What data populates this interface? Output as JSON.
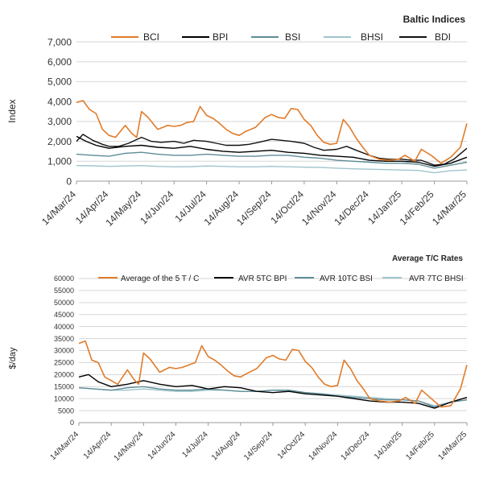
{
  "chart_data": [
    {
      "type": "line",
      "title": "Baltic Indices",
      "ylabel": "Index",
      "ylim": [
        0,
        7000
      ],
      "yticks": [
        0,
        1000,
        2000,
        3000,
        4000,
        5000,
        6000,
        7000
      ],
      "ytick_labels": [
        "0",
        "1,000",
        "2,000",
        "3,000",
        "4,000",
        "5,000",
        "6,000",
        "7,000"
      ],
      "xticks": [
        "14/Mar/24",
        "14/Apr/24",
        "14/May/24",
        "14/Jun/24",
        "14/Jul/24",
        "14/Aug/24",
        "14/Sep/24",
        "14/Oct/24",
        "14/Nov/24",
        "14/Dec/24",
        "14/Jan/25",
        "14/Feb/25",
        "14/Mar/25"
      ],
      "legend": "top",
      "grid": "horizontal",
      "series": [
        {
          "name": "BCI",
          "color": "#e07b2a",
          "t": [
            0,
            0.2,
            0.4,
            0.6,
            0.8,
            1,
            1.2,
            1.5,
            1.7,
            1.85,
            2,
            2.2,
            2.5,
            2.8,
            3,
            3.2,
            3.4,
            3.6,
            3.8,
            4,
            4.2,
            4.4,
            4.6,
            4.8,
            5,
            5.2,
            5.5,
            5.8,
            6,
            6.2,
            6.4,
            6.6,
            6.8,
            7,
            7.2,
            7.4,
            7.6,
            7.8,
            8,
            8.2,
            8.4,
            8.6,
            8.8,
            9,
            9.3,
            9.6,
            9.9,
            10.1,
            10.4,
            10.6,
            10.9,
            11.2,
            11.5,
            11.8,
            12
          ],
          "values": [
            3950,
            4050,
            3600,
            3400,
            2600,
            2300,
            2200,
            2800,
            2400,
            2200,
            3500,
            3200,
            2600,
            2800,
            2750,
            2800,
            2950,
            3000,
            3750,
            3300,
            3150,
            2900,
            2600,
            2400,
            2300,
            2500,
            2700,
            3200,
            3350,
            3200,
            3150,
            3650,
            3600,
            3100,
            2800,
            2300,
            1950,
            1850,
            1900,
            3100,
            2700,
            2150,
            1700,
            1300,
            1100,
            1050,
            1100,
            1300,
            1000,
            1600,
            1300,
            900,
            1200,
            1700,
            2900
          ]
        },
        {
          "name": "BPI",
          "color": "#000000",
          "t": [
            0,
            0.3,
            0.6,
            1,
            1.5,
            2,
            2.5,
            3,
            3.5,
            4,
            4.5,
            5,
            5.5,
            6,
            6.5,
            7,
            7.5,
            8,
            8.5,
            9,
            9.5,
            10,
            10.5,
            11,
            11.5,
            12
          ],
          "values": [
            2250,
            2000,
            1800,
            1650,
            1750,
            1800,
            1700,
            1650,
            1750,
            1600,
            1500,
            1450,
            1500,
            1550,
            1450,
            1400,
            1300,
            1250,
            1200,
            1050,
            1000,
            1000,
            950,
            750,
            900,
            1200
          ]
        },
        {
          "name": "BSI",
          "color": "#5e8c96",
          "t": [
            0,
            0.5,
            1,
            1.5,
            2,
            2.5,
            3,
            3.5,
            4,
            4.5,
            5,
            5.5,
            6,
            6.5,
            7,
            7.5,
            8,
            8.5,
            9,
            9.5,
            10,
            10.5,
            11,
            11.5,
            12
          ],
          "values": [
            1350,
            1300,
            1250,
            1400,
            1450,
            1350,
            1300,
            1300,
            1350,
            1300,
            1250,
            1250,
            1300,
            1300,
            1200,
            1150,
            1050,
            1000,
            950,
            900,
            900,
            850,
            650,
            800,
            950
          ]
        },
        {
          "name": "BHSI",
          "color": "#9fc4cc",
          "t": [
            0,
            0.5,
            1,
            1.5,
            2,
            2.5,
            3,
            3.5,
            4,
            4.5,
            5,
            5.5,
            6,
            6.5,
            7,
            7.5,
            8,
            8.5,
            9,
            9.5,
            10,
            10.5,
            11,
            11.5,
            12
          ],
          "values": [
            780,
            770,
            740,
            760,
            780,
            740,
            720,
            730,
            760,
            740,
            720,
            720,
            740,
            720,
            700,
            690,
            650,
            620,
            600,
            580,
            560,
            540,
            420,
            520,
            560
          ]
        },
        {
          "name": "BDI",
          "color": "#111111",
          "t": [
            0,
            0.2,
            0.5,
            0.8,
            1,
            1.3,
            1.6,
            2,
            2.3,
            2.6,
            3,
            3.3,
            3.6,
            4,
            4.3,
            4.6,
            5,
            5.3,
            5.6,
            6,
            6.3,
            6.6,
            7,
            7.3,
            7.6,
            8,
            8.3,
            8.6,
            9,
            9.3,
            9.6,
            10,
            10.3,
            10.6,
            11,
            11.3,
            11.6,
            12
          ],
          "values": [
            2000,
            2350,
            2050,
            1850,
            1750,
            1750,
            1900,
            2200,
            2000,
            1950,
            2000,
            1900,
            2050,
            2000,
            1900,
            1800,
            1800,
            1850,
            1950,
            2100,
            2050,
            2000,
            1900,
            1700,
            1550,
            1600,
            1750,
            1550,
            1300,
            1150,
            1100,
            1100,
            1050,
            1050,
            800,
            850,
            1100,
            1650
          ]
        }
      ]
    },
    {
      "type": "line",
      "title": "Average T/C Rates",
      "ylabel": "$/day",
      "ylim": [
        0,
        60000
      ],
      "yticks": [
        0,
        5000,
        10000,
        15000,
        20000,
        25000,
        30000,
        35000,
        40000,
        45000,
        50000,
        55000,
        60000
      ],
      "ytick_labels": [
        "0",
        "5000",
        "10000",
        "15000",
        "20000",
        "25000",
        "30000",
        "35000",
        "40000",
        "45000",
        "50000",
        "55000",
        "60000"
      ],
      "xticks": [
        "14/Mar/24",
        "14/Apr/24",
        "14/May/24",
        "14/Jun/24",
        "14/Jul/24",
        "14/Aug/24",
        "14/Sep/24",
        "14/Oct/24",
        "14/Nov/24",
        "14/Dec/24",
        "14/Jan/25",
        "14/Feb/25",
        "14/Mar/25"
      ],
      "legend": "top",
      "grid": "horizontal",
      "series": [
        {
          "name": "Average of the 5 T / C",
          "color": "#e07b2a",
          "t": [
            0,
            0.2,
            0.4,
            0.6,
            0.8,
            1,
            1.2,
            1.5,
            1.7,
            1.85,
            2,
            2.2,
            2.5,
            2.8,
            3,
            3.2,
            3.4,
            3.6,
            3.8,
            4,
            4.2,
            4.4,
            4.6,
            4.8,
            5,
            5.2,
            5.5,
            5.8,
            6,
            6.2,
            6.4,
            6.6,
            6.8,
            7,
            7.2,
            7.4,
            7.6,
            7.8,
            8,
            8.2,
            8.4,
            8.6,
            8.8,
            9,
            9.3,
            9.6,
            9.9,
            10.1,
            10.4,
            10.6,
            10.9,
            11.2,
            11.5,
            11.8,
            12
          ],
          "values": [
            33000,
            34000,
            26000,
            25000,
            19000,
            17500,
            16000,
            22000,
            18000,
            16000,
            29000,
            26500,
            21000,
            23000,
            22500,
            23000,
            24000,
            25000,
            32000,
            27500,
            26000,
            24000,
            21500,
            19500,
            19000,
            20500,
            22500,
            27000,
            28000,
            26500,
            26000,
            30500,
            30000,
            25500,
            23000,
            19000,
            16000,
            15000,
            15500,
            26000,
            22500,
            17500,
            14000,
            10000,
            9000,
            8500,
            9000,
            10500,
            8000,
            13500,
            10000,
            6500,
            7000,
            14000,
            24000
          ]
        },
        {
          "name": "AVR 5TC BPI",
          "color": "#000000",
          "t": [
            0,
            0.3,
            0.6,
            1,
            1.5,
            2,
            2.5,
            3,
            3.5,
            4,
            4.5,
            5,
            5.5,
            6,
            6.5,
            7,
            7.5,
            8,
            8.5,
            9,
            9.5,
            10,
            10.5,
            11,
            11.5,
            12
          ],
          "values": [
            19000,
            20000,
            17000,
            15000,
            16000,
            17500,
            16000,
            15000,
            15500,
            14000,
            15000,
            14500,
            13000,
            12500,
            13000,
            12000,
            11500,
            11000,
            10000,
            9000,
            8500,
            8500,
            8000,
            6000,
            8500,
            10500
          ]
        },
        {
          "name": "AVR 10TC BSI",
          "color": "#5e8c96",
          "t": [
            0,
            0.5,
            1,
            1.5,
            2,
            2.5,
            3,
            3.5,
            4,
            4.5,
            5,
            5.5,
            6,
            6.5,
            7,
            7.5,
            8,
            8.5,
            9,
            9.5,
            10,
            10.5,
            11,
            11.5,
            12
          ],
          "values": [
            14500,
            14000,
            13500,
            14500,
            15000,
            14000,
            13500,
            13500,
            14000,
            13500,
            13000,
            13000,
            13500,
            13500,
            12500,
            12000,
            11000,
            10500,
            10000,
            9500,
            9500,
            9000,
            6500,
            8500,
            9500
          ]
        },
        {
          "name": "AVR 7TC BHSI",
          "color": "#9fc4cc",
          "t": [
            0,
            0.5,
            1,
            1.5,
            2,
            2.5,
            3,
            3.5,
            4,
            4.5,
            5,
            5.5,
            6,
            6.5,
            7,
            7.5,
            8,
            8.5,
            9,
            9.5,
            10,
            10.5,
            11,
            11.5,
            12
          ],
          "values": [
            14500,
            14000,
            13500,
            13500,
            14000,
            13500,
            13000,
            13000,
            13500,
            13500,
            13000,
            13000,
            13500,
            13000,
            12500,
            12000,
            11500,
            11000,
            10500,
            10000,
            9500,
            9000,
            7000,
            8500,
            9500
          ]
        }
      ]
    }
  ]
}
